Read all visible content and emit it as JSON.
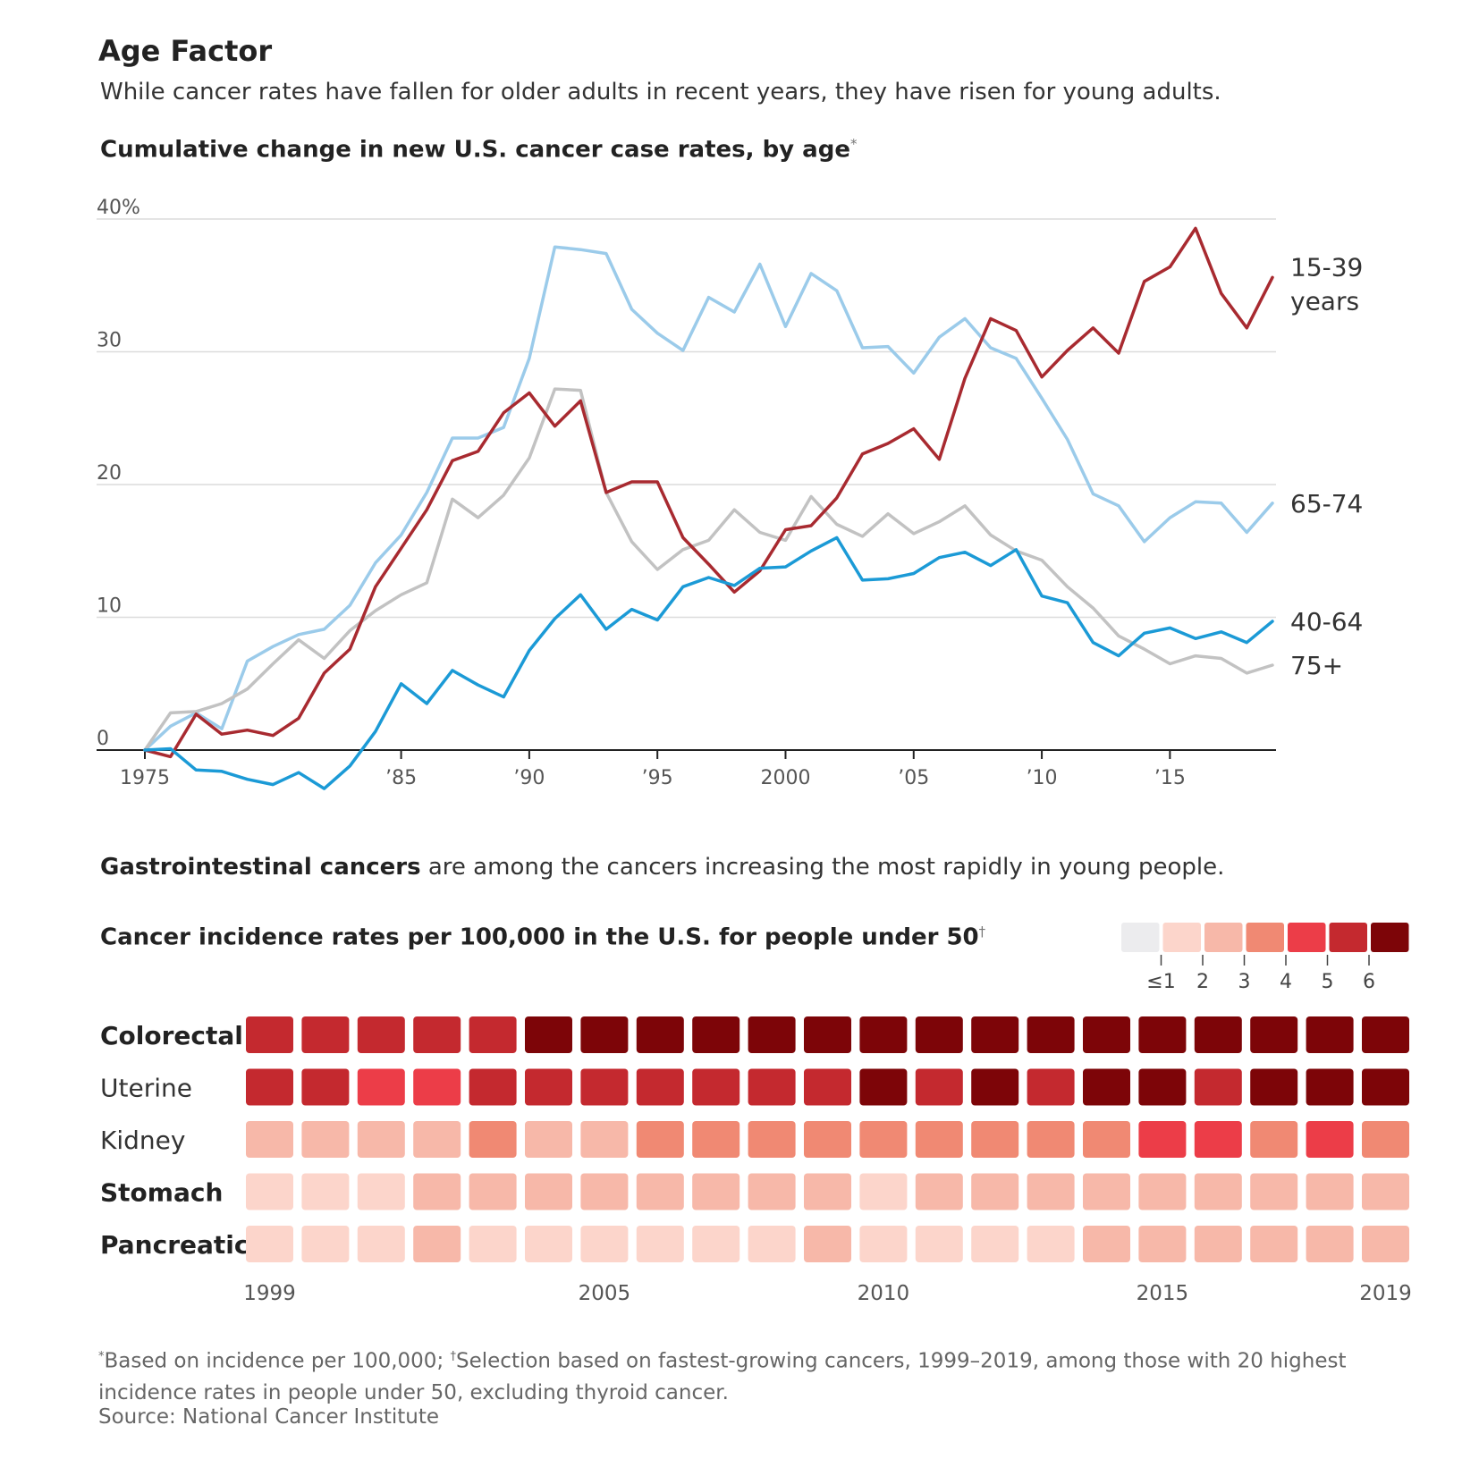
{
  "header": {
    "title": "Age Factor",
    "subtitle": "While cancer rates have fallen for older adults in recent years, they have risen for young adults."
  },
  "chart1": {
    "title": "Cumulative change in new U.S. cancer case rates, by age",
    "title_mark": "*"
  },
  "section2": {
    "lead_bold": "Gastrointestinal cancers",
    "lead_rest": " are among the cancers increasing the most rapidly in young people."
  },
  "chart2": {
    "title": "Cancer incidence rates per 100,000 in the U.S. for people under 50",
    "title_mark": "†"
  },
  "footnote": {
    "mark1": "*",
    "text1": "Based on incidence per 100,000; ",
    "mark2": "†",
    "text2": "Selection based on fastest-growing cancers, 1999–2019, among those with 20 highest incidence rates in people under 50, excluding thyroid cancer.",
    "source": "Source: National Cancer Institute"
  },
  "chart_data": [
    {
      "type": "line",
      "title": "Cumulative change in new U.S. cancer case rates, by age",
      "xlabel": "",
      "ylabel": "",
      "xlim": [
        1975,
        2019
      ],
      "ylim": [
        -3,
        40
      ],
      "yticks": [
        0,
        10,
        20,
        30,
        40
      ],
      "ytick_labels": [
        "0",
        "10",
        "20",
        "30",
        "40%"
      ],
      "xticks": [
        1975,
        1985,
        1990,
        1995,
        2000,
        2005,
        2010,
        2015
      ],
      "xtick_labels": [
        "1975",
        "’85",
        "’90",
        "’95",
        "2000",
        "’05",
        "’10",
        "’15"
      ],
      "x": [
        1975,
        1976,
        1977,
        1978,
        1979,
        1980,
        1981,
        1982,
        1983,
        1984,
        1985,
        1986,
        1987,
        1988,
        1989,
        1990,
        1991,
        1992,
        1993,
        1994,
        1995,
        1996,
        1997,
        1998,
        1999,
        2000,
        2001,
        2002,
        2003,
        2004,
        2005,
        2006,
        2007,
        2008,
        2009,
        2010,
        2011,
        2012,
        2013,
        2014,
        2015,
        2016,
        2017,
        2018,
        2019
      ],
      "series": [
        {
          "name": "65-74",
          "label_lines": [
            "65-74"
          ],
          "color": "#9bcbea",
          "values": [
            0,
            1.8,
            2.8,
            1.6,
            6.7,
            7.8,
            8.7,
            9.1,
            10.9,
            14.1,
            16.2,
            19.4,
            23.5,
            23.5,
            24.3,
            29.5,
            37.9,
            37.7,
            37.4,
            33.2,
            31.4,
            30.1,
            34.1,
            33,
            36.6,
            31.9,
            35.9,
            34.6,
            30.3,
            30.4,
            28.4,
            31.1,
            32.5,
            30.3,
            29.5,
            26.5,
            23.4,
            19.3,
            18.4,
            15.7,
            17.5,
            18.7,
            18.6,
            16.4,
            18.6
          ]
        },
        {
          "name": "75+",
          "label_lines": [
            "75+"
          ],
          "color": "#c2c2c2",
          "values": [
            0,
            2.8,
            2.9,
            3.5,
            4.6,
            6.5,
            8.3,
            6.9,
            9,
            10.5,
            11.7,
            12.6,
            18.9,
            17.5,
            19.2,
            22,
            27.2,
            27.1,
            19.4,
            15.7,
            13.6,
            15.1,
            15.8,
            18.1,
            16.4,
            15.8,
            19.1,
            17,
            16.1,
            17.8,
            16.3,
            17.2,
            18.4,
            16.2,
            15,
            14.3,
            12.3,
            10.7,
            8.6,
            7.6,
            6.5,
            7.1,
            6.9,
            5.8,
            6.4
          ]
        },
        {
          "name": "15-39 years",
          "label_lines": [
            "15-39",
            "years"
          ],
          "color": "#a82a30",
          "values": [
            0,
            -0.5,
            2.7,
            1.2,
            1.5,
            1.1,
            2.4,
            5.8,
            7.6,
            12.3,
            15.2,
            18.1,
            21.8,
            22.5,
            25.4,
            26.9,
            24.4,
            26.3,
            19.4,
            20.2,
            20.2,
            16,
            14,
            11.9,
            13.5,
            16.6,
            16.9,
            19,
            22.3,
            23.1,
            24.2,
            21.9,
            28,
            32.5,
            31.6,
            28.1,
            30.1,
            31.8,
            29.9,
            35.3,
            36.4,
            39.3,
            34.4,
            31.8,
            35.6
          ]
        },
        {
          "name": "40-64",
          "label_lines": [
            "40-64"
          ],
          "color": "#1b9ad6",
          "values": [
            0,
            0.1,
            -1.5,
            -1.6,
            -2.2,
            -2.6,
            -1.7,
            -2.9,
            -1.2,
            1.4,
            5,
            3.5,
            6,
            4.9,
            4,
            7.5,
            9.9,
            11.7,
            9.1,
            10.6,
            9.8,
            12.3,
            13,
            12.4,
            13.7,
            13.8,
            15,
            16,
            12.8,
            12.9,
            13.3,
            14.5,
            14.9,
            13.9,
            15.1,
            11.6,
            11.1,
            8.1,
            7.1,
            8.8,
            9.2,
            8.4,
            8.9,
            8.1,
            9.7
          ]
        }
      ]
    },
    {
      "type": "heatmap",
      "title": "Cancer incidence rates per 100,000 in the U.S. for people under 50",
      "x": [
        1999,
        2000,
        2001,
        2002,
        2003,
        2004,
        2005,
        2006,
        2007,
        2008,
        2009,
        2010,
        2011,
        2012,
        2013,
        2014,
        2015,
        2016,
        2017,
        2018,
        2019
      ],
      "xtick_labels": {
        "1999": "1999",
        "2005": "2005",
        "2010": "2010",
        "2015": "2015",
        "2019": "2019"
      },
      "rows": [
        "Colorectal",
        "Uterine",
        "Kidney",
        "Stomach",
        "Pancreatic"
      ],
      "rows_bold": [
        true,
        false,
        false,
        true,
        true
      ],
      "values": [
        [
          5,
          5,
          5,
          5,
          5,
          6,
          6,
          6,
          6,
          6,
          6,
          6,
          6,
          6,
          6,
          6,
          6,
          6,
          6,
          6,
          6
        ],
        [
          5,
          5,
          4,
          4,
          5,
          5,
          5,
          5,
          5,
          5,
          5,
          6,
          5,
          6,
          5,
          6,
          6,
          5,
          6,
          6,
          6
        ],
        [
          2,
          2,
          2,
          2,
          3,
          2,
          2,
          3,
          3,
          3,
          3,
          3,
          3,
          3,
          3,
          3,
          4,
          4,
          3,
          4,
          3
        ],
        [
          1,
          1,
          1,
          2,
          2,
          2,
          2,
          2,
          2,
          2,
          2,
          1,
          2,
          2,
          2,
          2,
          2,
          2,
          2,
          2,
          2
        ],
        [
          1,
          1,
          1,
          2,
          1,
          1,
          1,
          1,
          1,
          1,
          2,
          1,
          1,
          1,
          1,
          2,
          2,
          2,
          2,
          2,
          2
        ]
      ],
      "legend": {
        "labels": [
          "≤1",
          "2",
          "3",
          "4",
          "5",
          "6"
        ],
        "colors": [
          "#ececee",
          "#fcd5cb",
          "#f7b8a9",
          "#f08973",
          "#ec3d48",
          "#c4292f",
          "#7d0508"
        ]
      }
    }
  ]
}
